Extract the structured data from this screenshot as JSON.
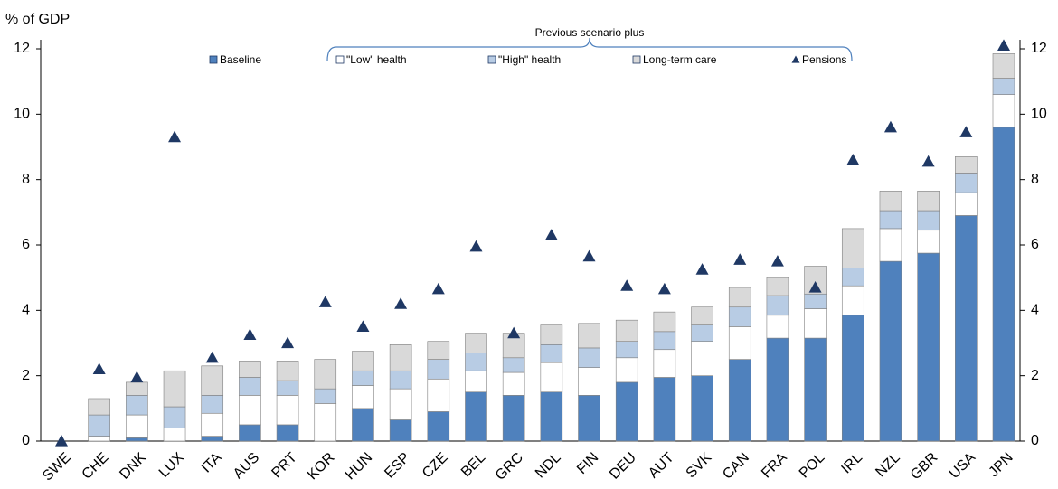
{
  "chart_data": {
    "type": "bar",
    "stacked": true,
    "y_label": "% of GDP",
    "annotation": "Previous  scenario plus",
    "categories": [
      "SWE",
      "CHE",
      "DNK",
      "LUX",
      "ITA",
      "AUS",
      "PRT",
      "KOR",
      "HUN",
      "ESP",
      "CZE",
      "BEL",
      "GRC",
      "NDL",
      "FIN",
      "DEU",
      "AUT",
      "SVK",
      "CAN",
      "FRA",
      "POL",
      "IRL",
      "NZL",
      "GBR",
      "USA",
      "JPN"
    ],
    "series": [
      {
        "name": "Baseline",
        "color": "#4f81bd",
        "values": [
          0,
          0,
          0.1,
          0,
          0.15,
          0.5,
          0.5,
          0,
          1.0,
          0.65,
          0.9,
          1.5,
          1.4,
          1.5,
          1.4,
          1.8,
          1.95,
          2.0,
          2.5,
          3.15,
          3.15,
          3.85,
          5.5,
          5.75,
          6.9,
          9.6
        ]
      },
      {
        "name": "\"Low\" health",
        "color": "#ffffff",
        "values": [
          0,
          0.15,
          0.7,
          0.4,
          0.7,
          0.9,
          0.9,
          1.15,
          0.7,
          0.95,
          1.0,
          0.65,
          0.7,
          0.9,
          0.85,
          0.75,
          0.85,
          1.05,
          1.0,
          0.7,
          0.9,
          0.9,
          1.0,
          0.7,
          0.7,
          1.0
        ]
      },
      {
        "name": "\"High\" health",
        "color": "#b8cce4",
        "values": [
          0,
          0.65,
          0.6,
          0.65,
          0.55,
          0.55,
          0.45,
          0.45,
          0.45,
          0.55,
          0.6,
          0.55,
          0.45,
          0.55,
          0.6,
          0.5,
          0.55,
          0.5,
          0.6,
          0.6,
          0.45,
          0.55,
          0.55,
          0.6,
          0.6,
          0.5
        ]
      },
      {
        "name": "Long-term care",
        "color": "#d9d9d9",
        "values": [
          0,
          0.5,
          0.4,
          1.1,
          0.9,
          0.5,
          0.6,
          0.9,
          0.6,
          0.8,
          0.55,
          0.6,
          0.75,
          0.6,
          0.75,
          0.65,
          0.6,
          0.55,
          0.6,
          0.55,
          0.85,
          1.2,
          0.6,
          0.6,
          0.5,
          0.75
        ]
      },
      {
        "name": "Pensions",
        "color": "#1f3864",
        "marker": "triangle",
        "values": [
          0,
          2.2,
          1.95,
          9.3,
          2.55,
          3.25,
          3.0,
          4.25,
          3.5,
          4.2,
          4.65,
          5.95,
          3.3,
          6.3,
          5.65,
          4.75,
          4.65,
          5.25,
          5.55,
          5.5,
          4.7,
          8.6,
          9.6,
          8.55,
          9.45,
          12.1
        ]
      }
    ],
    "ylim": [
      0,
      12
    ],
    "yticks": [
      0,
      2,
      4,
      6,
      8,
      10,
      12
    ],
    "right_axis": true
  }
}
